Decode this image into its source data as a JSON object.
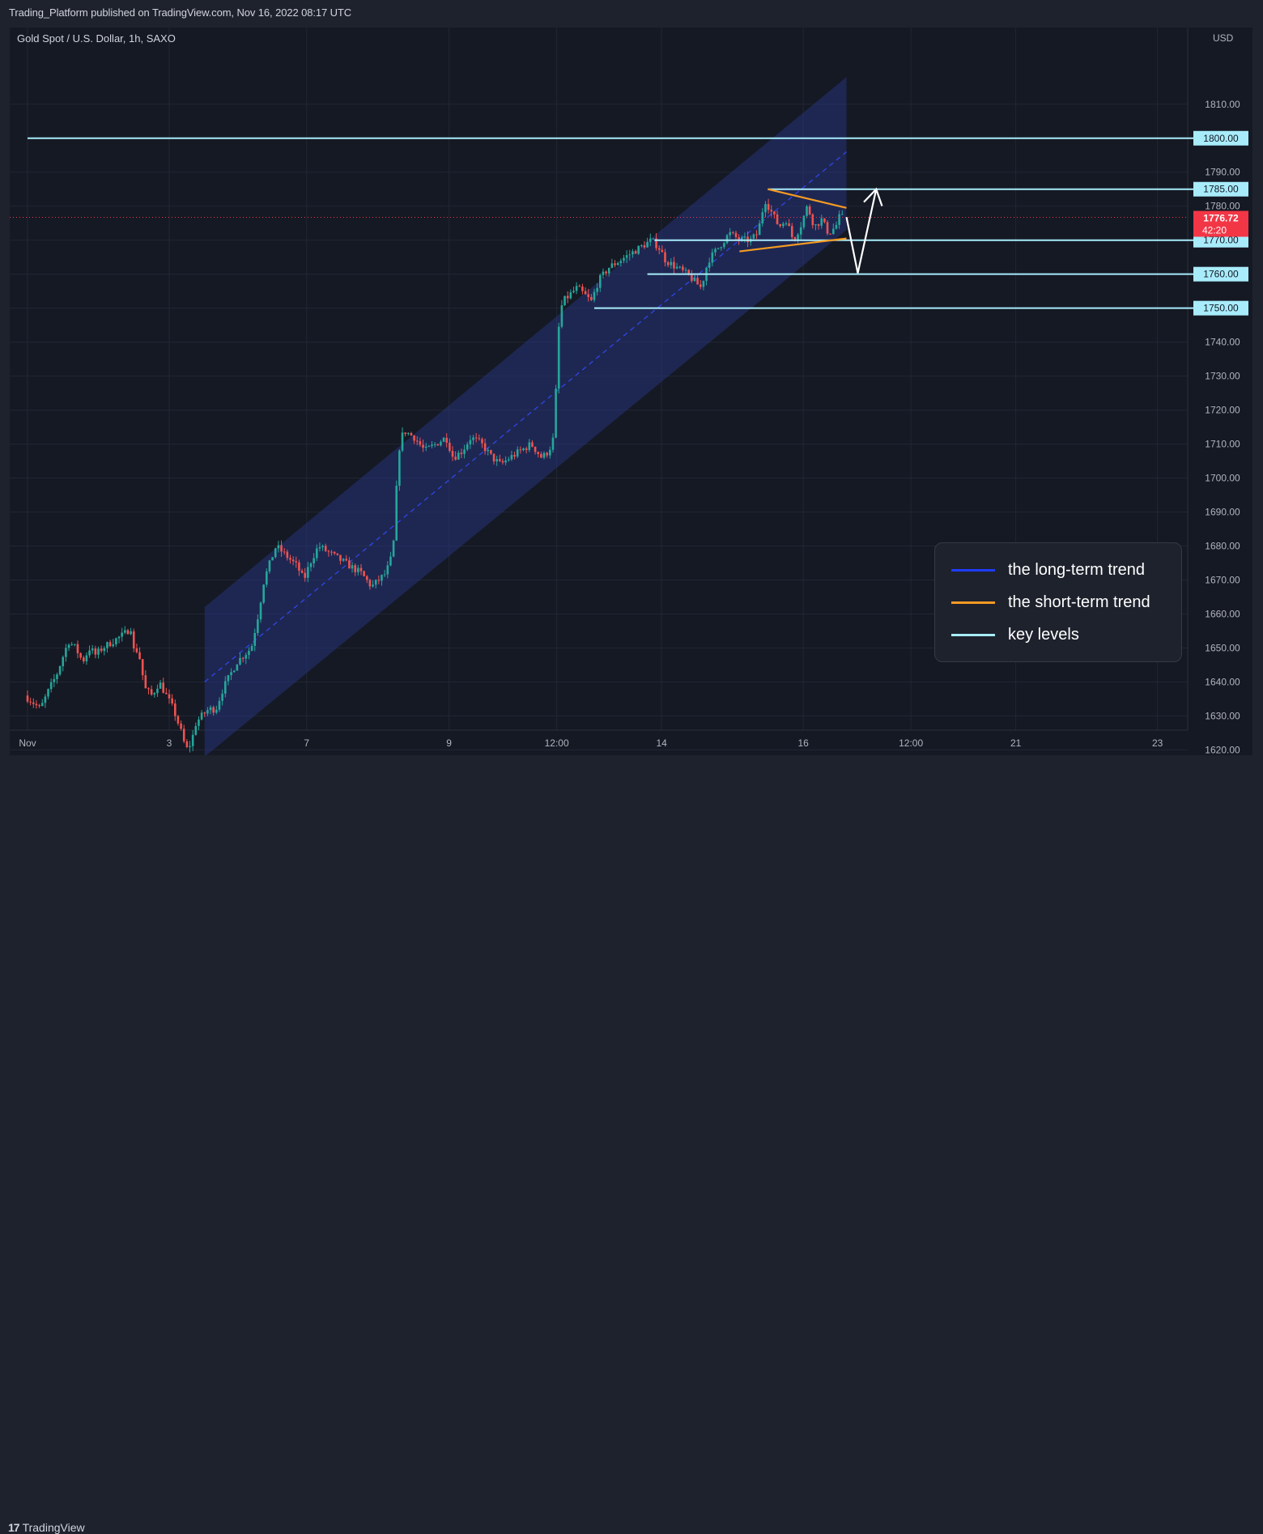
{
  "header": {
    "published": "Trading_Platform published on TradingView.com, Nov 16, 2022 08:17 UTC"
  },
  "symbol": {
    "title": "Gold Spot / U.S. Dollar, 1h, SAXO",
    "currency": "USD"
  },
  "price_badge": {
    "price": "1776.72",
    "countdown": "42:20"
  },
  "footer": {
    "brand": "TradingView",
    "brand_mark": "17"
  },
  "legend": [
    {
      "label": "the long-term trend",
      "color": "#1e3cff"
    },
    {
      "label": "the short-term trend",
      "color": "#f59b23"
    },
    {
      "label": "key levels",
      "color": "#a8ecfb"
    }
  ],
  "colors": {
    "background": "#151924",
    "grid": "#222633",
    "up": "#26a69a",
    "down": "#ef5350",
    "channel_fill": "#2a3a8c",
    "key_level": "#a8ecfb",
    "short_trend": "#f59b23",
    "current_price": "#f23645"
  },
  "chart_data": {
    "type": "candlestick",
    "symbol": "Gold Spot / U.S. Dollar, 1h, SAXO",
    "yaxis": {
      "unit": "USD",
      "range": [
        1616,
        1822
      ],
      "ticks": [
        1620,
        1630,
        1640,
        1650,
        1660,
        1670,
        1680,
        1690,
        1700,
        1710,
        1720,
        1730,
        1740,
        1750,
        1760,
        1770,
        1780,
        1790,
        1810
      ]
    },
    "xaxis": {
      "ticks": [
        {
          "label": "Nov",
          "t": 0.0
        },
        {
          "label": "3",
          "t": 2.0
        },
        {
          "label": "7",
          "t": 3.94
        },
        {
          "label": "9",
          "t": 5.95
        },
        {
          "label": "12:00",
          "t": 7.47
        },
        {
          "label": "14",
          "t": 8.95
        },
        {
          "label": "16",
          "t": 10.95
        },
        {
          "label": "12:00",
          "t": 12.47
        },
        {
          "label": "21",
          "t": 13.95
        },
        {
          "label": "23",
          "t": 15.95
        }
      ]
    },
    "price_path": [
      [
        0.0,
        1636
      ],
      [
        0.12,
        1634
      ],
      [
        0.22,
        1632
      ],
      [
        0.35,
        1638
      ],
      [
        0.45,
        1642
      ],
      [
        0.55,
        1648
      ],
      [
        0.62,
        1652
      ],
      [
        0.72,
        1650
      ],
      [
        0.82,
        1646
      ],
      [
        0.92,
        1650
      ],
      [
        1.0,
        1648
      ],
      [
        1.1,
        1650
      ],
      [
        1.25,
        1652
      ],
      [
        1.4,
        1654
      ],
      [
        1.5,
        1656
      ],
      [
        1.55,
        1648
      ],
      [
        1.6,
        1650
      ],
      [
        1.65,
        1644
      ],
      [
        1.7,
        1638
      ],
      [
        1.8,
        1636
      ],
      [
        1.9,
        1640
      ],
      [
        2.0,
        1636
      ],
      [
        2.1,
        1632
      ],
      [
        2.2,
        1626
      ],
      [
        2.28,
        1620
      ],
      [
        2.35,
        1622
      ],
      [
        2.42,
        1628
      ],
      [
        2.5,
        1630
      ],
      [
        2.6,
        1632
      ],
      [
        2.7,
        1632
      ],
      [
        2.8,
        1638
      ],
      [
        2.9,
        1642
      ],
      [
        3.0,
        1646
      ],
      [
        3.1,
        1648
      ],
      [
        3.2,
        1650
      ],
      [
        3.3,
        1660
      ],
      [
        3.38,
        1670
      ],
      [
        3.48,
        1676
      ],
      [
        3.55,
        1680
      ],
      [
        3.65,
        1678
      ],
      [
        3.75,
        1676
      ],
      [
        3.85,
        1674
      ],
      [
        3.94,
        1670
      ],
      [
        4.05,
        1676
      ],
      [
        4.15,
        1680
      ],
      [
        4.3,
        1678
      ],
      [
        4.45,
        1676
      ],
      [
        4.6,
        1674
      ],
      [
        4.75,
        1672
      ],
      [
        4.9,
        1668
      ],
      [
        5.0,
        1670
      ],
      [
        5.1,
        1672
      ],
      [
        5.2,
        1678
      ],
      [
        5.28,
        1708
      ],
      [
        5.35,
        1714
      ],
      [
        5.5,
        1712
      ],
      [
        5.65,
        1708
      ],
      [
        5.8,
        1710
      ],
      [
        5.95,
        1712
      ],
      [
        6.05,
        1706
      ],
      [
        6.18,
        1708
      ],
      [
        6.3,
        1712
      ],
      [
        6.45,
        1710
      ],
      [
        6.6,
        1706
      ],
      [
        6.72,
        1704
      ],
      [
        6.85,
        1706
      ],
      [
        7.0,
        1708
      ],
      [
        7.15,
        1710
      ],
      [
        7.3,
        1706
      ],
      [
        7.4,
        1708
      ],
      [
        7.47,
        1712
      ],
      [
        7.55,
        1748
      ],
      [
        7.6,
        1752
      ],
      [
        7.7,
        1754
      ],
      [
        7.8,
        1756
      ],
      [
        7.9,
        1754
      ],
      [
        8.0,
        1752
      ],
      [
        8.1,
        1758
      ],
      [
        8.25,
        1762
      ],
      [
        8.4,
        1764
      ],
      [
        8.55,
        1766
      ],
      [
        8.7,
        1768
      ],
      [
        8.85,
        1770
      ],
      [
        8.95,
        1768
      ],
      [
        9.05,
        1764
      ],
      [
        9.2,
        1762
      ],
      [
        9.35,
        1760
      ],
      [
        9.45,
        1758
      ],
      [
        9.55,
        1756
      ],
      [
        9.65,
        1764
      ],
      [
        9.8,
        1768
      ],
      [
        9.95,
        1772
      ],
      [
        10.1,
        1770
      ],
      [
        10.25,
        1770
      ],
      [
        10.35,
        1772
      ],
      [
        10.45,
        1782
      ],
      [
        10.55,
        1778
      ],
      [
        10.65,
        1774
      ],
      [
        10.75,
        1776
      ],
      [
        10.85,
        1770
      ],
      [
        10.95,
        1774
      ],
      [
        11.05,
        1780
      ],
      [
        11.15,
        1774
      ],
      [
        11.25,
        1776
      ],
      [
        11.35,
        1772
      ],
      [
        11.45,
        1774
      ],
      [
        11.5,
        1776.72
      ]
    ],
    "current_price": 1776.72,
    "key_levels": [
      {
        "value": 1800.0,
        "label": "1800.00",
        "from_t": 0.0
      },
      {
        "value": 1785.0,
        "label": "1785.00",
        "from_t": 10.45
      },
      {
        "value": 1770.0,
        "label": "1770.00",
        "from_t": 8.85
      },
      {
        "value": 1760.0,
        "label": "1760.00",
        "from_t": 8.75
      },
      {
        "value": 1750.0,
        "label": "1750.00",
        "from_t": 8.0
      }
    ],
    "long_term_channel": {
      "start_t": 2.5,
      "end_t": 11.56,
      "upper": [
        1662,
        1818
      ],
      "mid": [
        1640,
        1796
      ],
      "lower": [
        1618,
        1773
      ]
    },
    "short_term_triangle": {
      "upper": [
        [
          10.45,
          1785.0
        ],
        [
          11.56,
          1779.5
        ]
      ],
      "lower": [
        [
          10.05,
          1766.7
        ],
        [
          11.56,
          1770.5
        ]
      ]
    },
    "projection_arrow": [
      [
        11.56,
        1776.8
      ],
      [
        11.72,
        1760.3
      ],
      [
        11.98,
        1785.0
      ]
    ]
  }
}
